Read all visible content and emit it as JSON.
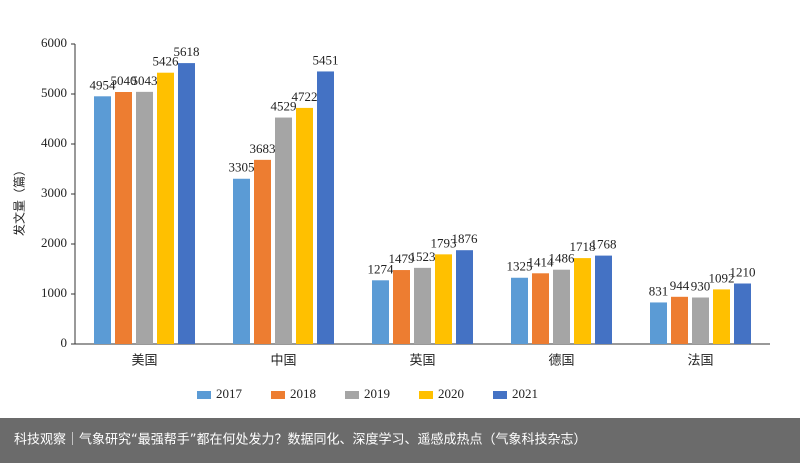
{
  "chart_data": {
    "type": "bar",
    "y_label": "发文量（篇）",
    "categories": [
      "美国",
      "中国",
      "英国",
      "德国",
      "法国"
    ],
    "series": [
      {
        "name": "2017",
        "color": "#5b9bd5",
        "values": [
          4954,
          3305,
          1274,
          1325,
          831
        ]
      },
      {
        "name": "2018",
        "color": "#ed7d31",
        "values": [
          5040,
          3683,
          1479,
          1414,
          944
        ]
      },
      {
        "name": "2019",
        "color": "#a5a5a5",
        "values": [
          5043,
          4529,
          1523,
          1486,
          930
        ]
      },
      {
        "name": "2020",
        "color": "#ffc000",
        "values": [
          5426,
          4722,
          1793,
          1718,
          1092
        ]
      },
      {
        "name": "2021",
        "color": "#4472c4",
        "values": [
          5618,
          5451,
          1876,
          1768,
          1210
        ]
      }
    ],
    "ylim": [
      0,
      6000
    ],
    "yticks": [
      0,
      1000,
      2000,
      3000,
      4000,
      5000,
      6000
    ],
    "grid": false,
    "legend": "bottom"
  },
  "banner": "科技观察｜气象研究“最强帮手”都在何处发力？数据同化、深度学习、遥感成热点（气象科技杂志）"
}
